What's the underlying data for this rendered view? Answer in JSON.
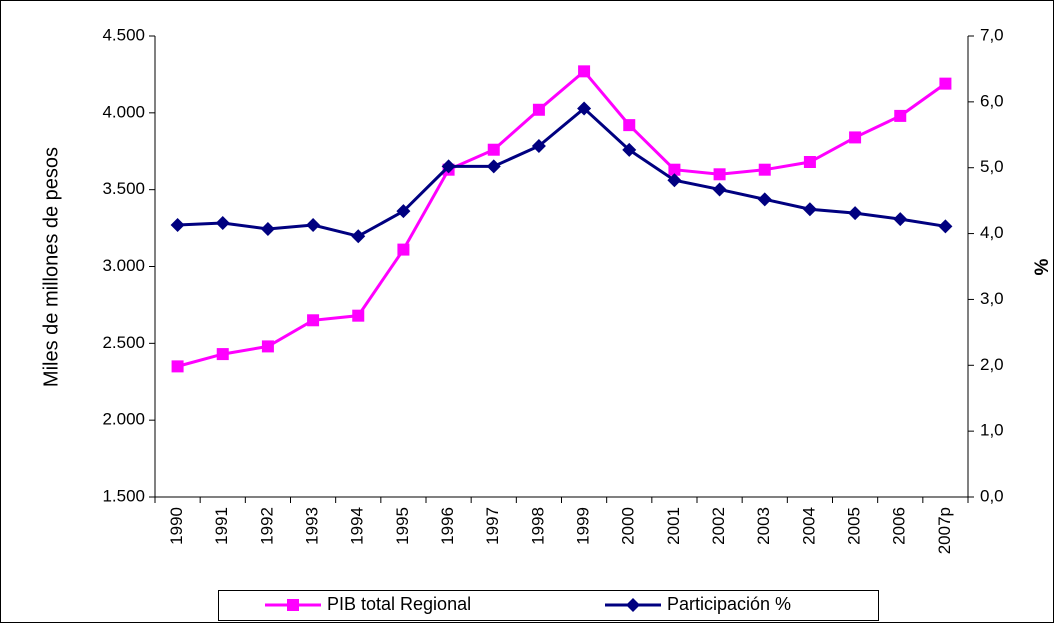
{
  "chart_data": {
    "type": "line",
    "y_label": "Miles de millones de pesos",
    "y2_label": "%",
    "categories": [
      "1990",
      "1991",
      "1992",
      "1993",
      "1994",
      "1995",
      "1996",
      "1997",
      "1998",
      "1999",
      "2000",
      "2001",
      "2002",
      "2003",
      "2004",
      "2005",
      "2006",
      "2007p"
    ],
    "series": [
      {
        "name": "PIB total Regional",
        "color": "#ff00ff",
        "marker": "square",
        "values": [
          2350,
          2430,
          2480,
          2650,
          2680,
          3110,
          3630,
          3760,
          4020,
          4270,
          3920,
          3630,
          3600,
          3630,
          3680,
          3840,
          3980,
          4190
        ]
      },
      {
        "name": "Participación %",
        "color": "#000080",
        "marker": "diamond",
        "axis": "y2",
        "values": [
          4.13,
          4.16,
          4.07,
          4.13,
          3.96,
          4.34,
          5.02,
          5.02,
          5.33,
          5.9,
          5.27,
          4.81,
          4.67,
          4.52,
          4.37,
          4.31,
          4.22,
          4.11
        ]
      }
    ],
    "ylim": [
      1500,
      4500
    ],
    "yticks": [
      {
        "value": 1500,
        "label": "1.500"
      },
      {
        "value": 2000,
        "label": "2.000"
      },
      {
        "value": 2500,
        "label": "2.500"
      },
      {
        "value": 3000,
        "label": "3.000"
      },
      {
        "value": 3500,
        "label": "3.500"
      },
      {
        "value": 4000,
        "label": "4.000"
      },
      {
        "value": 4500,
        "label": "4.500"
      }
    ],
    "y2lim": [
      0,
      7
    ],
    "y2ticks": [
      {
        "value": 0,
        "label": "0,0"
      },
      {
        "value": 1,
        "label": "1,0"
      },
      {
        "value": 2,
        "label": "2,0"
      },
      {
        "value": 3,
        "label": "3,0"
      },
      {
        "value": 4,
        "label": "4,0"
      },
      {
        "value": 5,
        "label": "5,0"
      },
      {
        "value": 6,
        "label": "6,0"
      },
      {
        "value": 7,
        "label": "7,0"
      }
    ],
    "grid": false,
    "legend": "bottom"
  }
}
